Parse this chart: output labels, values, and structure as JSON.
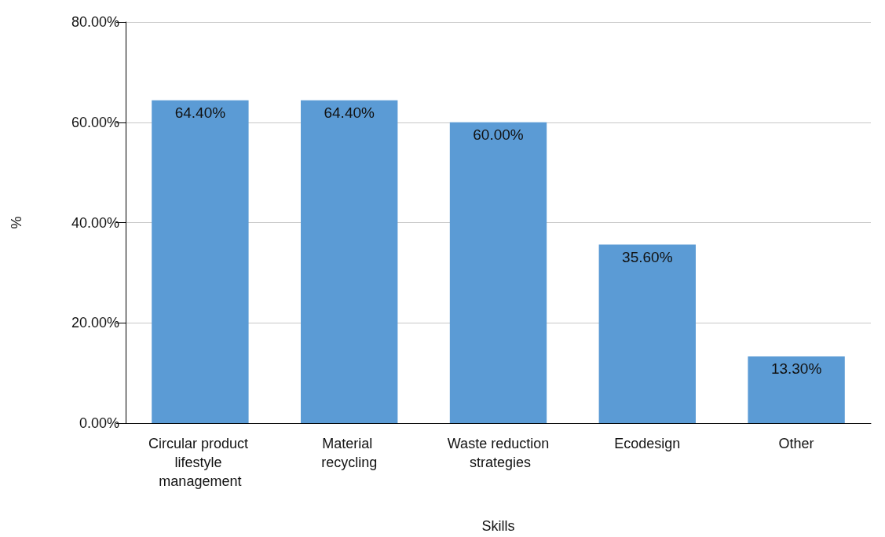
{
  "chart_data": {
    "type": "bar",
    "xlabel": "Skills",
    "ylabel": "%",
    "categories": [
      "Circular product lifestyle management",
      "Material recycling",
      "Waste reduction strategies",
      "Ecodesign",
      "Other"
    ],
    "values": [
      64.4,
      64.4,
      60,
      35.6,
      13.3
    ],
    "value_labels": [
      "64.40%",
      "64.40%",
      "60.00%",
      "35.60%",
      "13.30%"
    ],
    "color": "#5b9bd5",
    "ylim": [
      0,
      80
    ],
    "yticks": [
      {
        "value": 0,
        "label": "0.00%"
      },
      {
        "value": 20,
        "label": "20.00%"
      },
      {
        "value": 40,
        "label": "40.00%"
      },
      {
        "value": 60,
        "label": "60.00%"
      },
      {
        "value": 80,
        "label": "80.00%"
      }
    ],
    "grid": "y"
  }
}
